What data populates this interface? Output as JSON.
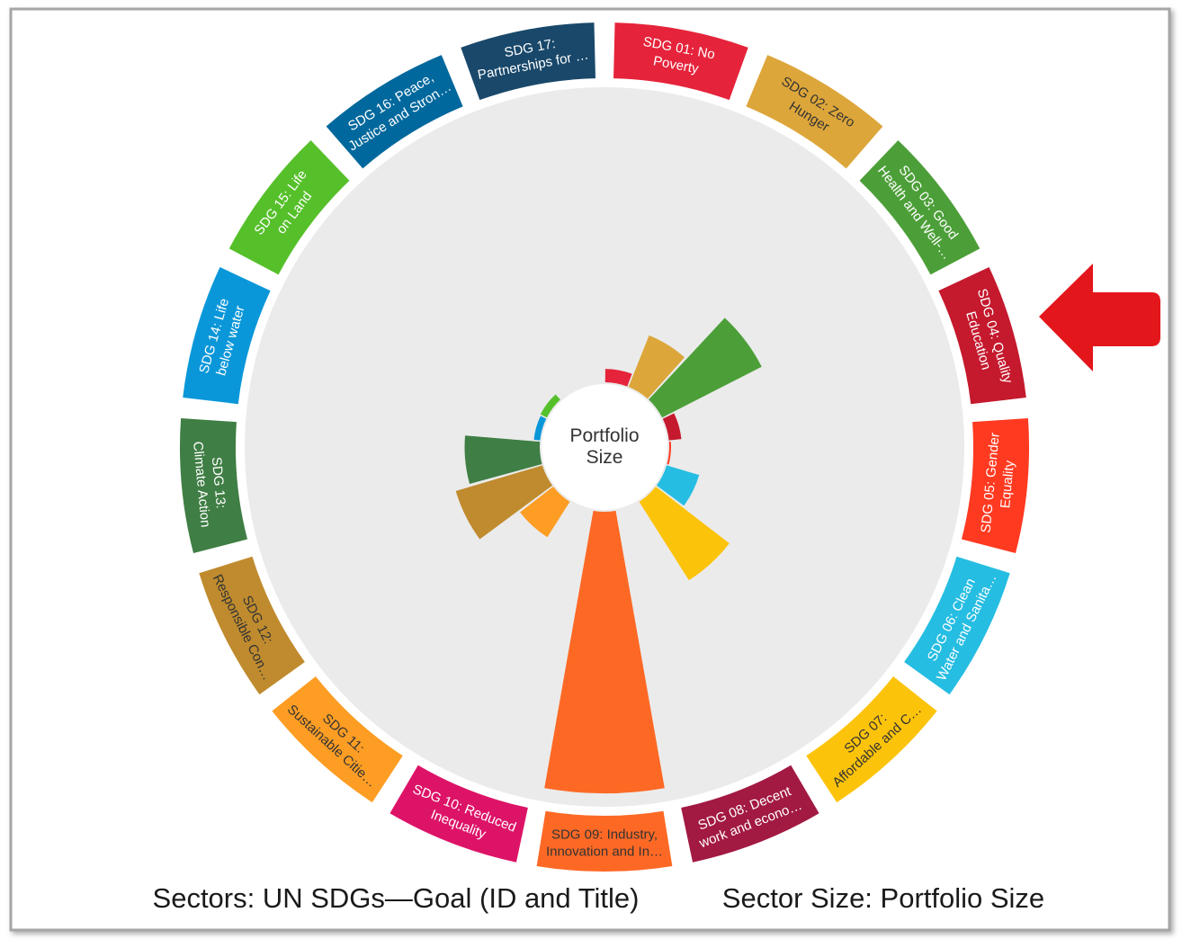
{
  "chart_data": {
    "type": "radial-bar",
    "center_label": "Portfolio\nSize",
    "caption_sectors": "Sectors:  UN SDGs—Goal (ID and Title)",
    "caption_size": "Sector Size:  Portfolio Size",
    "categories": [
      "SDG 01: No\nPoverty",
      "SDG 02: Zero\nHunger",
      "SDG 03: Good\nHealth and Well-…",
      "SDG 04: Quality\nEducation",
      "SDG 05: Gender\nEquality",
      "SDG 06: Clean\nWater and Sanita…",
      "SDG 07:\nAffordable and C…",
      "SDG 08: Decent\nwork and econo…",
      "SDG 09: Industry,\nInnovation and In…",
      "SDG 10: Reduced\nInequality",
      "SDG 11:\nSustainable Citie…",
      "SDG 12:\nResponsible Con…",
      "SDG 13:\nClimate Action",
      "SDG 14: Life\nbelow water",
      "SDG 15: Life\non Land",
      "SDG 16: Peace,\nJustice and Stron…",
      "SDG 17:\nPartnerships for …"
    ],
    "values": [
      15,
      62,
      125,
      14,
      2,
      38,
      104,
      0,
      315,
      0,
      47,
      101,
      84,
      7,
      8,
      0,
      0
    ],
    "rlim": [
      0,
      330
    ],
    "colors": [
      "#e5243b",
      "#dda63a",
      "#4c9f38",
      "#c5192d",
      "#ff3a21",
      "#26bde2",
      "#fcc30b",
      "#a21942",
      "#fd6925",
      "#dd1367",
      "#fd9d24",
      "#bf8b2e",
      "#3f7e44",
      "#0a97d9",
      "#56c02b",
      "#00689d",
      "#19486a"
    ],
    "label_colors": [
      "#ffffff",
      "#333333",
      "#ffffff",
      "#ffffff",
      "#ffffff",
      "#ffffff",
      "#333333",
      "#ffffff",
      "#333333",
      "#ffffff",
      "#333333",
      "#333333",
      "#ffffff",
      "#ffffff",
      "#ffffff",
      "#ffffff",
      "#ffffff"
    ]
  }
}
